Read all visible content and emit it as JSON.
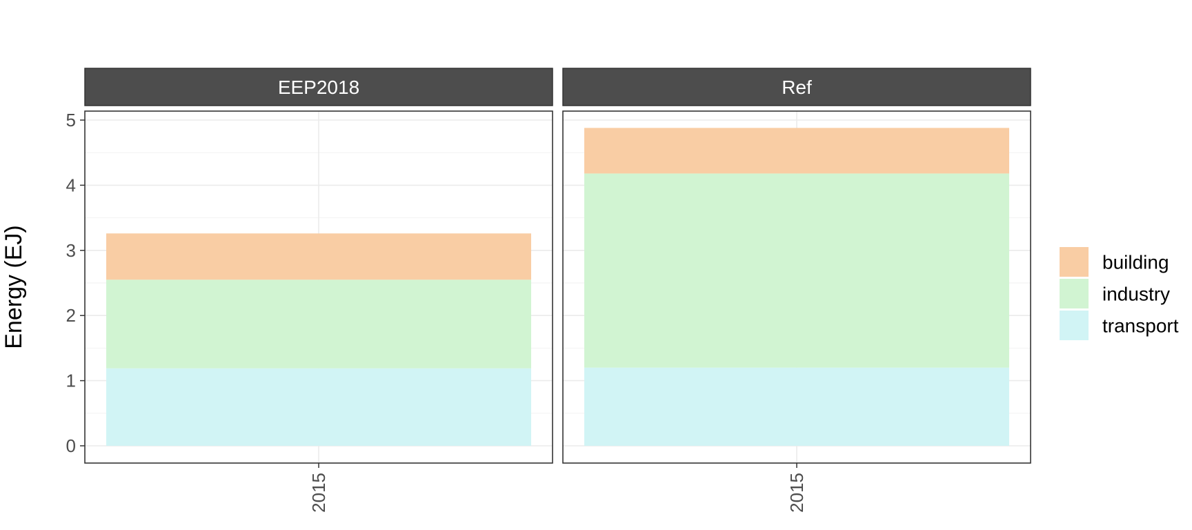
{
  "chart_data": {
    "type": "bar",
    "stacked": true,
    "facets": [
      "EEP2018",
      "Ref"
    ],
    "categories": [
      "2015"
    ],
    "xlabel": "",
    "ylabel": "Energy (EJ)",
    "ylim": [
      0,
      5.1
    ],
    "yticks": [
      0,
      1,
      2,
      3,
      4,
      5
    ],
    "grid": true,
    "legend_position": "right",
    "series": [
      {
        "name": "transport",
        "color": "#d1f4f5",
        "values": {
          "EEP2018": [
            1.19
          ],
          "Ref": [
            1.2
          ]
        }
      },
      {
        "name": "industry",
        "color": "#d1f4d2",
        "values": {
          "EEP2018": [
            1.36
          ],
          "Ref": [
            2.98
          ]
        }
      },
      {
        "name": "building",
        "color": "#f9cda4",
        "values": {
          "EEP2018": [
            0.71
          ],
          "Ref": [
            0.7
          ]
        }
      }
    ],
    "legend_order": [
      "building",
      "industry",
      "transport"
    ]
  }
}
